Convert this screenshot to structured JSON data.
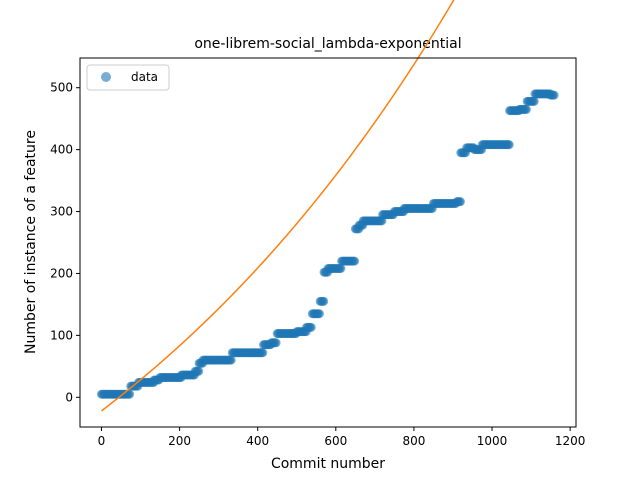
{
  "chart_data": {
    "type": "scatter",
    "title": "one-librem-social_lambda-exponential",
    "xlabel": "Commit number",
    "ylabel": "Number of instance of a feature",
    "xlim": [
      -55,
      1215
    ],
    "ylim": [
      -48,
      548
    ],
    "x_ticks": [
      0,
      200,
      400,
      600,
      800,
      1000,
      1200
    ],
    "y_ticks": [
      0,
      100,
      200,
      300,
      400,
      500
    ],
    "grid": false,
    "legend": {
      "placement": "top-left",
      "entries": [
        "data"
      ]
    },
    "colors": {
      "data": "#1f77b4",
      "fit": "#ff7f0e"
    },
    "series": [
      {
        "name": "data",
        "kind": "scatter",
        "segments": [
          [
            0,
            75,
            5
          ],
          [
            75,
            95,
            18
          ],
          [
            95,
            135,
            24
          ],
          [
            135,
            150,
            28
          ],
          [
            150,
            205,
            32
          ],
          [
            205,
            240,
            36
          ],
          [
            240,
            250,
            42
          ],
          [
            250,
            260,
            55
          ],
          [
            260,
            335,
            60
          ],
          [
            335,
            415,
            72
          ],
          [
            415,
            435,
            85
          ],
          [
            435,
            450,
            88
          ],
          [
            450,
            500,
            103
          ],
          [
            500,
            525,
            106
          ],
          [
            525,
            540,
            113
          ],
          [
            540,
            560,
            135
          ],
          [
            560,
            570,
            155
          ],
          [
            570,
            580,
            202
          ],
          [
            580,
            615,
            208
          ],
          [
            615,
            650,
            220
          ],
          [
            650,
            660,
            272
          ],
          [
            660,
            670,
            278
          ],
          [
            670,
            720,
            285
          ],
          [
            720,
            750,
            295
          ],
          [
            750,
            775,
            300
          ],
          [
            775,
            850,
            305
          ],
          [
            850,
            910,
            313
          ],
          [
            910,
            920,
            316
          ],
          [
            920,
            935,
            395
          ],
          [
            935,
            955,
            403
          ],
          [
            955,
            975,
            400
          ],
          [
            975,
            1045,
            408
          ],
          [
            1045,
            1070,
            463
          ],
          [
            1070,
            1090,
            465
          ],
          [
            1090,
            1110,
            478
          ],
          [
            1110,
            1150,
            490
          ],
          [
            1150,
            1160,
            488
          ]
        ]
      },
      {
        "name": "",
        "kind": "line",
        "function": "exponential",
        "params": {
          "a": 545,
          "b": 0.000883,
          "c": -567
        },
        "x_range": [
          0,
          1160
        ]
      }
    ]
  }
}
